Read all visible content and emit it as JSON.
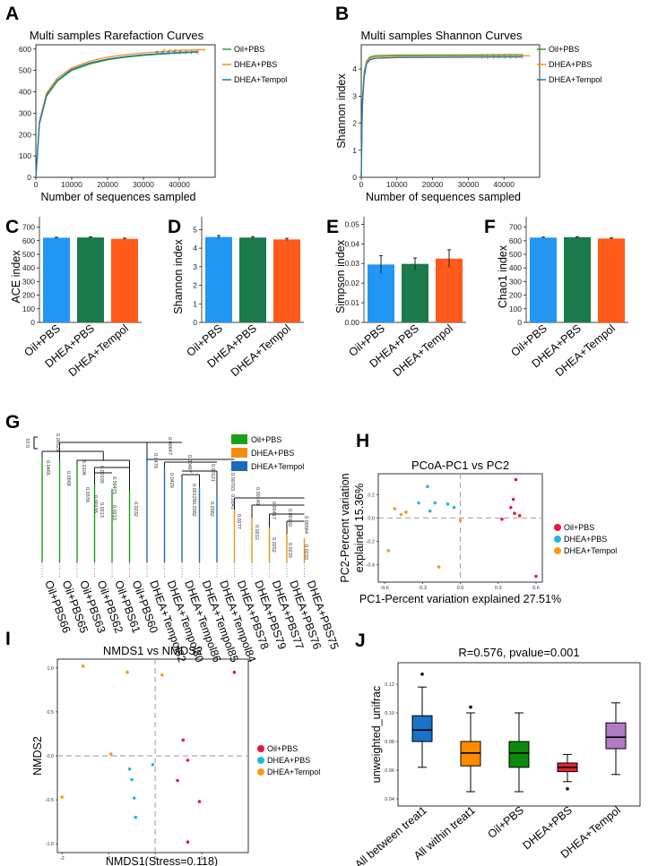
{
  "colors": {
    "oil": "#2ca02c",
    "dhea": "#ff8c1a",
    "tempol": "#1f77b4",
    "bar_oil": "#2196f3",
    "bar_dhea": "#1a7a4c",
    "bar_tempol": "#ff5a1a",
    "tree_oil": "#1a9e1a",
    "tree_dhea": "#f0900f",
    "tree_tempol": "#1c6bb5",
    "pcoa_oil": "#e8173d",
    "pcoa_dhea": "#22b8e0",
    "pcoa_tempol": "#f79a1b",
    "box_all_between": "#1a73c9",
    "box_all_within": "#ff8c00",
    "box_oil": "#0c8a0c",
    "box_dhea": "#e8212b",
    "box_tempol": "#b07ac4"
  },
  "panels": [
    "A",
    "B",
    "C",
    "D",
    "E",
    "F",
    "G",
    "H",
    "I",
    "J"
  ],
  "chart_data": [
    {
      "id": "A",
      "type": "line",
      "title": "Multi samples Rarefaction Curves",
      "xlabel": "Number of sequences sampled",
      "ylabel": "",
      "xlim": [
        0,
        50000
      ],
      "ylim": [
        0,
        620
      ],
      "xticks": [
        0,
        10000,
        20000,
        30000,
        40000
      ],
      "yticks": [
        0,
        100,
        200,
        300,
        400,
        500,
        600
      ],
      "legend": [
        "Oil+PBS",
        "DHEA+PBS",
        "DHEA+Tempol"
      ],
      "series": [
        {
          "name": "Oil+PBS",
          "x": [
            0,
            1000,
            3000,
            6000,
            10000,
            15000,
            20000,
            25000,
            30000,
            35000,
            40000,
            45000
          ],
          "values": [
            0,
            250,
            380,
            450,
            500,
            530,
            550,
            562,
            570,
            577,
            582,
            585
          ]
        },
        {
          "name": "DHEA+PBS",
          "x": [
            0,
            1000,
            3000,
            6000,
            10000,
            15000,
            20000,
            25000,
            30000,
            35000,
            40000,
            47000
          ],
          "values": [
            0,
            262,
            395,
            465,
            512,
            543,
            562,
            574,
            582,
            588,
            593,
            598
          ]
        },
        {
          "name": "DHEA+Tempol",
          "x": [
            0,
            1000,
            3000,
            6000,
            10000,
            15000,
            20000,
            25000,
            30000,
            35000,
            40000,
            45000
          ],
          "values": [
            0,
            255,
            385,
            455,
            505,
            535,
            553,
            565,
            573,
            579,
            584,
            588
          ]
        }
      ]
    },
    {
      "id": "B",
      "type": "line",
      "title": "Multi samples Shannon Curves",
      "xlabel": "Number of sequences sampled",
      "ylabel": "Shannon index",
      "xlim": [
        0,
        50000
      ],
      "ylim": [
        0,
        4.9
      ],
      "xticks": [
        0,
        10000,
        20000,
        30000,
        40000
      ],
      "yticks": [
        0,
        1,
        2,
        3,
        4
      ],
      "legend": [
        "Oil+PBS",
        "DHEA+PBS",
        "DHEA+Tempol"
      ],
      "series": [
        {
          "name": "Oil+PBS",
          "x": [
            0,
            300,
            800,
            1500,
            2500,
            4000,
            10000,
            45000
          ],
          "values": [
            0,
            2.8,
            3.9,
            4.3,
            4.45,
            4.5,
            4.52,
            4.53
          ]
        },
        {
          "name": "DHEA+PBS",
          "x": [
            0,
            300,
            800,
            1500,
            2500,
            4000,
            10000,
            47000
          ],
          "values": [
            0,
            2.7,
            3.8,
            4.25,
            4.4,
            4.45,
            4.48,
            4.5
          ]
        },
        {
          "name": "DHEA+Tempol",
          "x": [
            0,
            300,
            800,
            1500,
            2500,
            4000,
            10000,
            45000
          ],
          "values": [
            0,
            2.6,
            3.7,
            4.2,
            4.35,
            4.4,
            4.43,
            4.45
          ]
        }
      ]
    },
    {
      "id": "C",
      "type": "bar",
      "ylabel": "ACE index",
      "ylim": [
        0,
        750
      ],
      "yticks": [
        0,
        100,
        200,
        300,
        400,
        500,
        600,
        700
      ],
      "categories": [
        "Oil+PBS",
        "DHEA+PBS",
        "DHEA+Tempol"
      ],
      "values": [
        622,
        624,
        614
      ],
      "errors": [
        4,
        4,
        5
      ]
    },
    {
      "id": "D",
      "type": "bar",
      "ylabel": "Shannon index",
      "ylim": [
        0,
        5.5
      ],
      "yticks": [
        0,
        1,
        2,
        3,
        4,
        5
      ],
      "categories": [
        "Oil+PBS",
        "DHEA+PBS",
        "DHEA+Tempol"
      ],
      "values": [
        4.6,
        4.57,
        4.47
      ],
      "errors": [
        0.08,
        0.05,
        0.06
      ]
    },
    {
      "id": "E",
      "type": "bar",
      "ylabel": "Simpson index",
      "ylim": [
        0,
        0.052
      ],
      "yticks": [
        0,
        0.01,
        0.02,
        0.03,
        0.04,
        0.05
      ],
      "yticklabels": [
        "0.00",
        "0.01",
        "0.02",
        "0.03",
        "0.04",
        "0.05"
      ],
      "categories": [
        "Oil+PBS",
        "DHEA+PBS",
        "DHEA+Tempol"
      ],
      "values": [
        0.0295,
        0.0298,
        0.0325
      ],
      "errors": [
        0.0045,
        0.003,
        0.0045
      ]
    },
    {
      "id": "F",
      "type": "bar",
      "ylabel": "Chao1 index",
      "ylim": [
        0,
        750
      ],
      "yticks": [
        0,
        100,
        200,
        300,
        400,
        500,
        600,
        700
      ],
      "categories": [
        "Oil+PBS",
        "DHEA+PBS",
        "DHEA+Tempol"
      ],
      "values": [
        623,
        626,
        616
      ],
      "errors": [
        4,
        3,
        5
      ]
    },
    {
      "id": "G",
      "type": "dendrogram",
      "scale_label": "0.01",
      "legend": [
        "Oil+PBS",
        "DHEA+PBS",
        "DHEA+Tempol"
      ],
      "leaves": [
        "Oil+PBS66",
        "Oil+PBS65",
        "Oil+PBS63",
        "Oil+PBS62",
        "Oil+PBS61",
        "Oil+PBS60",
        "DHEA+Tempol82",
        "DHEA+Tempol80",
        "DHEA+Tempol86",
        "DHEA+Tempol85",
        "DHEA+Tempol84",
        "DHEA+PBS78",
        "DHEA+PBS79",
        "DHEA+PBS77",
        "DHEA+PBS76",
        "DHEA+PBS75"
      ],
      "leaf_groups": [
        "oil",
        "oil",
        "oil",
        "oil",
        "oil",
        "oil",
        "tempol",
        "tempol",
        "tempol",
        "tempol",
        "tempol",
        "dhea",
        "dhea",
        "dhea",
        "dhea",
        "dhea"
      ],
      "branch_labels": [
        "0.00529",
        "0.0465",
        "0.0106",
        "0.0568",
        "0.00195",
        "0.0339",
        "0.00475",
        "0.00135",
        "0.0213",
        "0.0213",
        "0.0232",
        "0.00647",
        "0.0479",
        "0.00467",
        "0.0429",
        "0.00121",
        "0.00129",
        "0.00703",
        "0.0382",
        "0.0382",
        "0.0541",
        "0.00149",
        "0.0277",
        "0.00417",
        "0.0212",
        "0.00192",
        "0.0252",
        "0.00584",
        "0.0233",
        "0.0233"
      ]
    },
    {
      "id": "H",
      "type": "scatter",
      "title": "PCoA-PC1 vs PC2",
      "xlabel": "PC1-Percent variation explained 27.51%",
      "ylabel_line1": "PC2-Percent variation",
      "ylabel_line2": "explained 15.36%",
      "xlim": [
        -0.65,
        0.65
      ],
      "ylim": [
        -0.55,
        0.38
      ],
      "xticks": [
        -0.6,
        -0.3,
        0.0,
        0.3,
        0.6
      ],
      "xticklabels": [
        "-0.6",
        "-0.3",
        "0.0",
        "0.3",
        "0.6"
      ],
      "yticks": [
        -0.4,
        -0.2,
        0.0,
        0.2
      ],
      "yticklabels": [
        "-0.4",
        "-0.2",
        "0.0",
        "0.2"
      ],
      "legend": [
        "Oil+PBS",
        "DHEA+PBS",
        "DHEA+Tempol"
      ],
      "series": [
        {
          "name": "Oil+PBS",
          "points": [
            [
              0.44,
              0.33
            ],
            [
              0.42,
              0.16
            ],
            [
              0.4,
              0.09
            ],
            [
              0.43,
              0.04
            ],
            [
              0.47,
              0.02
            ],
            [
              0.33,
              -0.01
            ],
            [
              0.6,
              -0.5
            ]
          ]
        },
        {
          "name": "DHEA+PBS",
          "points": [
            [
              -0.26,
              0.27
            ],
            [
              -0.2,
              0.13
            ],
            [
              -0.1,
              0.12
            ],
            [
              -0.05,
              0.09
            ],
            [
              -0.24,
              0.06
            ],
            [
              -0.33,
              0.13
            ]
          ]
        },
        {
          "name": "DHEA+Tempol",
          "points": [
            [
              -0.52,
              0.08
            ],
            [
              -0.47,
              0.03
            ],
            [
              -0.43,
              0.05
            ],
            [
              -0.57,
              -0.28
            ],
            [
              0.0,
              -0.02
            ],
            [
              -0.17,
              -0.42
            ]
          ]
        }
      ]
    },
    {
      "id": "I",
      "type": "scatter",
      "title": "NMDS1 vs NMDS2",
      "xlabel": "NMDS1(Stress=0.118)",
      "ylabel": "NMDS2",
      "xlim": [
        -2.1,
        2.0
      ],
      "ylim": [
        -1.1,
        1.1
      ],
      "xticks": [
        -2,
        -1,
        0,
        1
      ],
      "xticklabels": [
        "-2",
        "-1",
        "0",
        "1"
      ],
      "yticks": [
        -1.0,
        -0.5,
        0.0,
        0.5,
        1.0
      ],
      "yticklabels": [
        "-1.0",
        "-0.5",
        "0.0",
        "0.5",
        "1.0"
      ],
      "legend": [
        "Oil+PBS",
        "DHEA+PBS",
        "DHEA+Tempol"
      ],
      "series": [
        {
          "name": "Oil+PBS",
          "points": [
            [
              1.7,
              0.95
            ],
            [
              0.6,
              0.18
            ],
            [
              0.7,
              -0.05
            ],
            [
              0.48,
              -0.28
            ],
            [
              0.95,
              -0.52
            ],
            [
              0.7,
              -0.98
            ]
          ]
        },
        {
          "name": "DHEA+PBS",
          "points": [
            [
              -0.42,
              -0.7
            ],
            [
              -0.45,
              -0.48
            ],
            [
              -0.5,
              -0.27
            ],
            [
              -0.05,
              -0.1
            ],
            [
              -0.55,
              -0.15
            ]
          ]
        },
        {
          "name": "DHEA+Tempol",
          "points": [
            [
              -1.55,
              1.02
            ],
            [
              -0.6,
              0.95
            ],
            [
              0.15,
              0.92
            ],
            [
              -0.95,
              0.02
            ],
            [
              -2.0,
              -0.47
            ]
          ]
        }
      ]
    },
    {
      "id": "J",
      "type": "box",
      "title": "R=0.576, pvalue=0.001",
      "ylabel": "unweighted_unifrac",
      "ylim": [
        0.035,
        0.135
      ],
      "yticks": [
        0.04,
        0.06,
        0.08,
        0.1,
        0.12
      ],
      "yticklabels": [
        "0.04",
        "0.06",
        "0.08",
        "0.10",
        "0.12"
      ],
      "categories": [
        "All between treat1",
        "All within treat1",
        "Oil+PBS",
        "DHEA+PBS",
        "DHEA+Tempol"
      ],
      "boxes": [
        {
          "name": "All between treat1",
          "whisker_low": 0.062,
          "q1": 0.08,
          "median": 0.088,
          "q3": 0.098,
          "whisker_high": 0.118,
          "outliers": [
            0.127
          ]
        },
        {
          "name": "All within treat1",
          "whisker_low": 0.045,
          "q1": 0.063,
          "median": 0.072,
          "q3": 0.08,
          "whisker_high": 0.1,
          "outliers": [
            0.104
          ]
        },
        {
          "name": "Oil+PBS",
          "whisker_low": 0.045,
          "q1": 0.062,
          "median": 0.072,
          "q3": 0.08,
          "whisker_high": 0.1,
          "outliers": []
        },
        {
          "name": "DHEA+PBS",
          "whisker_low": 0.052,
          "q1": 0.059,
          "median": 0.062,
          "q3": 0.065,
          "whisker_high": 0.071,
          "outliers": [
            0.047
          ]
        },
        {
          "name": "DHEA+Tempol",
          "whisker_low": 0.057,
          "q1": 0.075,
          "median": 0.083,
          "q3": 0.093,
          "whisker_high": 0.107,
          "outliers": []
        }
      ]
    }
  ]
}
